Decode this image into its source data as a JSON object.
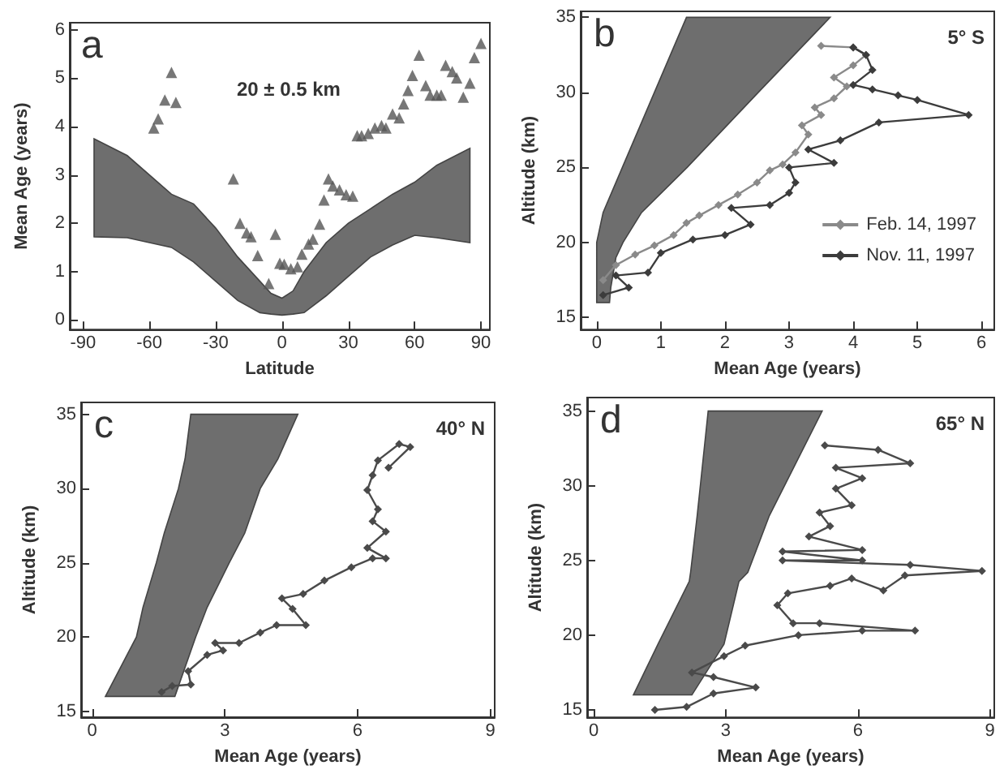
{
  "chart_data": [
    {
      "type": "scatter",
      "xlabel": "Latitude",
      "ylabel": "Mean Age (years)",
      "annotations": [
        "a",
        "20 ± 0.5 km"
      ],
      "xlim": [
        -96,
        94
      ],
      "xticks": [
        -90,
        -60,
        -30,
        0,
        30,
        60,
        90
      ],
      "ylim": [
        -0.2,
        6.15
      ],
      "yticks": [
        0,
        1,
        2,
        3,
        4,
        5,
        6
      ],
      "legend": false,
      "series": [
        {
          "type": "area",
          "color": "#6e6e6e",
          "x": [
            -85,
            -70,
            -50,
            -40,
            -30,
            -20,
            -10,
            -5,
            0,
            5,
            10,
            20,
            30,
            40,
            50,
            60,
            70,
            85,
            85,
            70,
            60,
            50,
            40,
            30,
            20,
            10,
            5,
            0,
            -5,
            -10,
            -20,
            -30,
            -40,
            -50,
            -70,
            -85
          ],
          "values": [
            1.72,
            1.7,
            1.5,
            1.2,
            0.8,
            0.4,
            0.15,
            0.12,
            0.1,
            0.12,
            0.15,
            0.5,
            0.9,
            1.3,
            1.55,
            1.75,
            1.7,
            1.6,
            3.55,
            3.2,
            2.85,
            2.6,
            2.3,
            2.0,
            1.6,
            1.0,
            0.6,
            0.45,
            0.55,
            0.8,
            1.3,
            1.9,
            2.4,
            2.6,
            3.4,
            3.75
          ]
        },
        {
          "color": "#555555",
          "marker": "triangle",
          "x": [
            -58,
            -56,
            -53,
            -50,
            -48,
            -22,
            -19,
            -16,
            -14,
            -11,
            -6,
            -3,
            -1,
            1,
            4,
            7,
            9,
            12,
            14,
            17,
            19,
            21,
            23,
            26,
            29,
            32,
            34,
            36,
            39,
            42,
            45,
            47,
            50,
            53,
            55,
            57,
            59,
            62,
            65,
            67,
            70,
            72,
            74,
            77,
            79,
            82,
            85,
            87,
            90
          ],
          "values": [
            3.97,
            4.16,
            4.55,
            5.12,
            4.5,
            2.92,
            2.0,
            1.8,
            1.72,
            1.33,
            0.75,
            1.77,
            1.17,
            1.15,
            1.06,
            1.1,
            1.36,
            1.57,
            1.67,
            1.98,
            2.48,
            2.92,
            2.77,
            2.69,
            2.59,
            2.56,
            3.81,
            3.81,
            3.86,
            3.97,
            4.02,
            3.97,
            4.26,
            4.18,
            4.47,
            4.75,
            5.06,
            5.48,
            4.85,
            4.65,
            4.65,
            4.65,
            5.27,
            5.14,
            5.01,
            4.61,
            4.9,
            5.43,
            5.72
          ]
        }
      ]
    },
    {
      "type": "line",
      "xlabel": "Mean Age (years)",
      "ylabel": "Altitude (km)",
      "annotations": [
        "b",
        "5° S"
      ],
      "xlim": [
        -0.25,
        6.2
      ],
      "xticks": [
        0,
        1,
        2,
        3,
        4,
        5,
        6
      ],
      "ylim": [
        14.2,
        35.4
      ],
      "yticks": [
        15,
        20,
        25,
        30,
        35
      ],
      "legend": "bottom right",
      "series": [
        {
          "type": "area",
          "color": "#6e6e6e",
          "x": [
            0,
            0,
            0,
            0,
            0.1,
            0.4,
            0.9,
            1.4,
            3.64,
            2.52,
            1.41,
            0.7,
            0.41,
            0.3,
            0.22,
            0.2
          ],
          "values": [
            16,
            17,
            19,
            20,
            22,
            25,
            30,
            35,
            35,
            30,
            25,
            22,
            20,
            19,
            17,
            16
          ]
        },
        {
          "name": "Feb. 14, 1997",
          "color": "#8a8a8a",
          "marker": "diamond",
          "x": [
            0.1,
            0.3,
            0.6,
            0.9,
            1.2,
            1.4,
            1.6,
            1.9,
            2.2,
            2.5,
            2.7,
            2.9,
            3.1,
            3.3,
            3.2,
            3.5,
            3.4,
            3.7,
            3.9,
            3.7,
            4.0,
            4.2,
            4.0,
            3.5
          ],
          "values": [
            17.5,
            18.5,
            19.2,
            19.8,
            20.5,
            21.3,
            21.8,
            22.5,
            23.2,
            24.0,
            24.8,
            25.2,
            26.0,
            27.2,
            27.8,
            28.5,
            29.0,
            29.6,
            30.4,
            31.0,
            31.8,
            32.5,
            33.0,
            33.1
          ]
        },
        {
          "name": "Nov. 11, 1997",
          "color": "#3c3c3c",
          "marker": "diamond",
          "x": [
            0.1,
            0.5,
            0.3,
            0.8,
            1.0,
            1.5,
            2.0,
            2.4,
            2.1,
            2.7,
            3.0,
            3.1,
            3.0,
            3.7,
            3.3,
            3.8,
            4.4,
            5.8,
            5.0,
            4.7,
            4.3,
            4.0,
            4.3,
            4.2,
            4.0
          ],
          "values": [
            16.5,
            17.0,
            17.8,
            18.0,
            19.3,
            20.2,
            20.5,
            21.2,
            22.3,
            22.5,
            23.3,
            24.0,
            25.0,
            25.3,
            26.2,
            26.8,
            28.0,
            28.5,
            29.5,
            29.8,
            30.2,
            30.5,
            31.5,
            32.5,
            33.0
          ]
        }
      ]
    },
    {
      "type": "line",
      "xlabel": "Mean Age (years)",
      "ylabel": "Altitude (km)",
      "annotations": [
        "c",
        "40° N"
      ],
      "xlim": [
        -0.25,
        9.1
      ],
      "xticks": [
        0,
        3,
        6,
        9
      ],
      "ylim": [
        14.6,
        35.8
      ],
      "yticks": [
        15,
        20,
        25,
        30,
        35
      ],
      "legend": false,
      "series": [
        {
          "type": "area",
          "color": "#6e6e6e",
          "x": [
            0.3,
            1.0,
            1.15,
            1.45,
            1.63,
            1.95,
            2.1,
            2.23,
            4.65,
            4.2,
            3.8,
            3.45,
            3.1,
            2.6,
            2.34,
            1.87
          ],
          "values": [
            16,
            20,
            22,
            25,
            27,
            30,
            32,
            35,
            35,
            32,
            30,
            27,
            25,
            22,
            20,
            16
          ]
        },
        {
          "color": "#4a4a4a",
          "marker": "diamond",
          "x": [
            1.57,
            1.81,
            2.23,
            2.17,
            2.6,
            2.96,
            2.78,
            3.32,
            3.8,
            4.17,
            4.83,
            4.53,
            4.29,
            4.77,
            5.25,
            5.86,
            6.34,
            6.64,
            6.22,
            6.64,
            6.34,
            6.46,
            6.22,
            6.34,
            6.46,
            6.94,
            7.19,
            6.7
          ],
          "values": [
            16.3,
            16.7,
            16.8,
            17.7,
            18.8,
            19.1,
            19.6,
            19.6,
            20.3,
            20.8,
            20.8,
            21.9,
            22.6,
            22.9,
            23.8,
            24.7,
            25.3,
            25.3,
            26.0,
            27.1,
            27.8,
            28.6,
            29.9,
            30.9,
            31.9,
            33.0,
            32.8,
            31.4
          ]
        }
      ]
    },
    {
      "type": "line",
      "xlabel": "Mean Age (years)",
      "ylabel": "Altitude (km)",
      "annotations": [
        "d",
        "65° N"
      ],
      "xlim": [
        -0.15,
        9.1
      ],
      "xticks": [
        0,
        3,
        6,
        9
      ],
      "ylim": [
        14.5,
        35.9
      ],
      "yticks": [
        15,
        20,
        25,
        30,
        35
      ],
      "legend": false,
      "series": [
        {
          "type": "area",
          "color": "#6e6e6e",
          "x": [
            0.9,
            1.46,
            2.17,
            2.2,
            2.35,
            2.6,
            5.19,
            3.99,
            3.5,
            3.3,
            2.96,
            2.23
          ],
          "values": [
            16,
            19.4,
            23.6,
            24.2,
            28,
            35,
            35,
            28,
            24.2,
            23.6,
            19.4,
            16
          ]
        },
        {
          "color": "#4a4a4a",
          "marker": "diamond",
          "x": [
            1.39,
            2.11,
            2.72,
            3.68,
            2.72,
            2.23,
            2.96,
            3.44,
            4.65,
            6.1,
            7.3,
            5.13,
            4.53,
            4.17,
            4.41,
            5.37,
            5.86,
            6.58,
            7.07,
            8.82,
            7.19,
            4.29,
            6.1,
            4.29,
            6.1,
            4.89,
            5.37,
            5.13,
            5.86,
            5.5,
            6.1,
            5.5,
            7.19,
            6.46,
            5.25
          ],
          "values": [
            15,
            15.2,
            16.1,
            16.5,
            17.2,
            17.5,
            18.6,
            19.3,
            20,
            20.3,
            20.3,
            20.8,
            20.8,
            22,
            22.8,
            23.3,
            23.8,
            23,
            24,
            24.3,
            24.7,
            25,
            25,
            25.6,
            25.7,
            26.6,
            27.3,
            28.2,
            28.7,
            29.8,
            30.5,
            31.2,
            31.5,
            32.4,
            32.7
          ]
        }
      ]
    }
  ]
}
